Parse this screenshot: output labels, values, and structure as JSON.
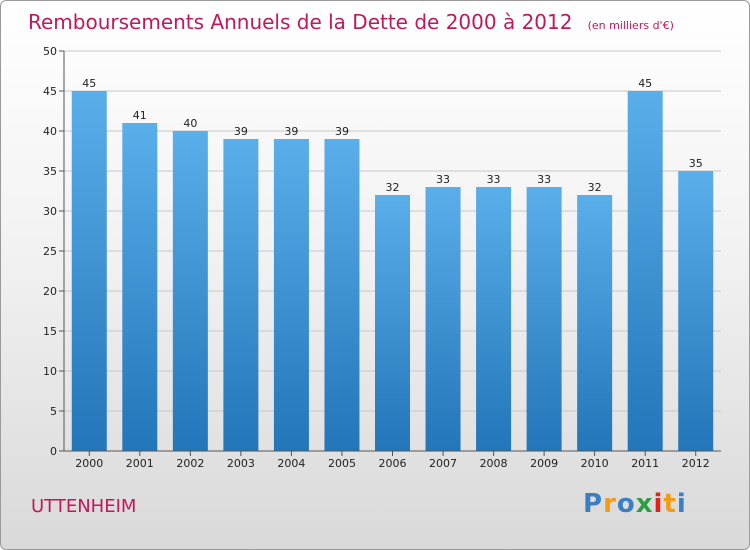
{
  "brand": {
    "name": "Proxiti",
    "letters": [
      {
        "ch": "P",
        "color": "#3a7fc4"
      },
      {
        "ch": "r",
        "color": "#f39c12"
      },
      {
        "ch": "o",
        "color": "#3a7fc4"
      },
      {
        "ch": "x",
        "color": "#2e9e44"
      },
      {
        "ch": "i",
        "color": "#e2231a"
      },
      {
        "ch": "t",
        "color": "#f39c12"
      },
      {
        "ch": "i",
        "color": "#3a7fc4"
      }
    ]
  },
  "location": "UTTENHEIM",
  "chart_data": {
    "type": "bar",
    "title": "Remboursements Annuels de la Dette de 2000 à 2012",
    "unit_label": "(en milliers d'€)",
    "categories": [
      "2000",
      "2001",
      "2002",
      "2003",
      "2004",
      "2005",
      "2006",
      "2007",
      "2008",
      "2009",
      "2010",
      "2011",
      "2012"
    ],
    "values": [
      45,
      41,
      40,
      39,
      39,
      39,
      32,
      33,
      33,
      33,
      32,
      45,
      35
    ],
    "ylim": [
      0,
      50
    ],
    "yticks": [
      0,
      5,
      10,
      15,
      20,
      25,
      30,
      35,
      40,
      45,
      50
    ],
    "grid": true,
    "bar_color_top": "#5aaeea",
    "bar_color_bottom": "#2276b9"
  }
}
